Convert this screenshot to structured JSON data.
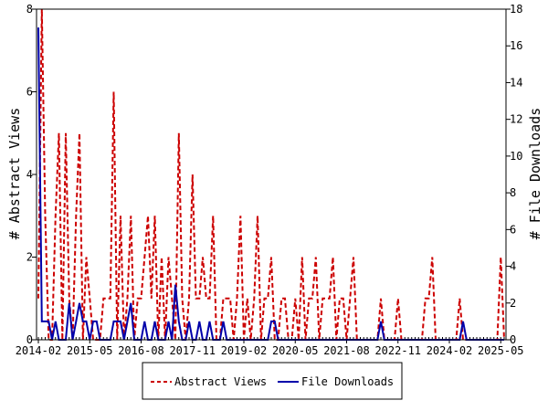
{
  "chart_data": {
    "type": "line",
    "ylabel_left": "# Abstract Views",
    "ylabel_right": "# File Downloads",
    "ylim_left": [
      0,
      8
    ],
    "ylim_right": [
      0,
      18
    ],
    "y_ticks_left": [
      0,
      2,
      4,
      6,
      8
    ],
    "y_ticks_right": [
      0,
      2,
      4,
      6,
      8,
      10,
      12,
      14,
      16,
      18
    ],
    "x_ticks": [
      "2014-02",
      "2015-05",
      "2016-08",
      "2017-11",
      "2019-02",
      "2020-05",
      "2021-08",
      "2022-11",
      "2024-02",
      "2025-05"
    ],
    "x": [
      "2014-02",
      "2014-03",
      "2014-04",
      "2014-05",
      "2014-06",
      "2014-07",
      "2014-08",
      "2014-09",
      "2014-10",
      "2014-11",
      "2014-12",
      "2015-01",
      "2015-02",
      "2015-03",
      "2015-04",
      "2015-05",
      "2015-06",
      "2015-07",
      "2015-08",
      "2015-09",
      "2015-10",
      "2015-11",
      "2015-12",
      "2016-01",
      "2016-02",
      "2016-03",
      "2016-04",
      "2016-05",
      "2016-06",
      "2016-07",
      "2016-08",
      "2016-09",
      "2016-10",
      "2016-11",
      "2016-12",
      "2017-01",
      "2017-02",
      "2017-03",
      "2017-04",
      "2017-05",
      "2017-06",
      "2017-07",
      "2017-08",
      "2017-09",
      "2017-10",
      "2017-11",
      "2017-12",
      "2018-01",
      "2018-02",
      "2018-03",
      "2018-04",
      "2018-05",
      "2018-06",
      "2018-07",
      "2018-08",
      "2018-09",
      "2018-10",
      "2018-11",
      "2018-12",
      "2019-01",
      "2019-02",
      "2019-03",
      "2019-04",
      "2019-05",
      "2019-06",
      "2019-07",
      "2019-08",
      "2019-09",
      "2019-10",
      "2019-11",
      "2019-12",
      "2020-01",
      "2020-02",
      "2020-03",
      "2020-04",
      "2020-05",
      "2020-06",
      "2020-07",
      "2020-08",
      "2020-09",
      "2020-10",
      "2020-11",
      "2020-12",
      "2021-01",
      "2021-02",
      "2021-03",
      "2021-04",
      "2021-05",
      "2021-06",
      "2021-07",
      "2021-08",
      "2021-09",
      "2021-10",
      "2021-11",
      "2021-12",
      "2022-01",
      "2022-02",
      "2022-03",
      "2022-04",
      "2022-05",
      "2022-06",
      "2022-07",
      "2022-08",
      "2022-09",
      "2022-10",
      "2022-11",
      "2022-12",
      "2023-01",
      "2023-02",
      "2023-03",
      "2023-04",
      "2023-05",
      "2023-06",
      "2023-07",
      "2023-08",
      "2023-09",
      "2023-10",
      "2023-11",
      "2023-12",
      "2024-01",
      "2024-02",
      "2024-03",
      "2024-04",
      "2024-05",
      "2024-06",
      "2024-07",
      "2024-08",
      "2024-09",
      "2024-10",
      "2024-11",
      "2024-12",
      "2025-01",
      "2025-02",
      "2025-03",
      "2025-04",
      "2025-05",
      "2025-06"
    ],
    "series": [
      {
        "name": "Abstract Views",
        "axis": "left",
        "color": "#cc0000",
        "style": "dashed",
        "values": [
          1,
          8,
          3,
          0,
          0,
          3,
          5,
          0,
          5,
          1,
          0,
          3,
          5,
          0,
          2,
          1,
          0,
          0,
          0,
          1,
          1,
          1,
          6,
          0,
          3,
          0,
          1,
          3,
          0,
          1,
          1,
          2,
          3,
          1,
          3,
          0,
          2,
          0,
          2,
          1,
          0,
          5,
          1,
          0,
          1,
          4,
          1,
          1,
          2,
          1,
          1,
          3,
          0,
          0,
          1,
          1,
          1,
          0,
          1,
          3,
          0,
          1,
          0,
          1,
          3,
          0,
          1,
          1,
          2,
          0,
          0,
          1,
          1,
          0,
          0,
          1,
          0,
          2,
          0,
          1,
          1,
          2,
          0,
          1,
          1,
          1,
          2,
          0,
          1,
          1,
          0,
          1,
          2,
          0,
          0,
          0,
          0,
          0,
          0,
          0,
          1,
          0,
          0,
          0,
          0,
          1,
          0,
          0,
          0,
          0,
          0,
          0,
          0,
          1,
          1,
          2,
          0,
          0,
          0,
          0,
          0,
          0,
          0,
          1,
          0,
          0,
          0,
          0,
          0,
          0,
          0,
          0,
          0,
          0,
          0,
          2,
          0
        ]
      },
      {
        "name": "File Downloads",
        "axis": "right",
        "color": "#0000aa",
        "style": "solid",
        "values": [
          17,
          1,
          1,
          1,
          0,
          1,
          0,
          0,
          0,
          2,
          0,
          1,
          2,
          1,
          1,
          0,
          1,
          1,
          0,
          0,
          0,
          0,
          1,
          1,
          1,
          0,
          1,
          2,
          0,
          0,
          0,
          1,
          0,
          0,
          1,
          0,
          0,
          0,
          1,
          0,
          3,
          1,
          0,
          0,
          1,
          0,
          0,
          1,
          0,
          0,
          1,
          0,
          0,
          0,
          1,
          0,
          0,
          0,
          0,
          0,
          0,
          0,
          0,
          0,
          0,
          0,
          0,
          0,
          1,
          1,
          0,
          0,
          0,
          0,
          0,
          0,
          0,
          0,
          0,
          0,
          0,
          0,
          0,
          0,
          0,
          0,
          0,
          0,
          0,
          0,
          0,
          0,
          0,
          0,
          0,
          0,
          0,
          0,
          0,
          0,
          1,
          0,
          0,
          0,
          0,
          0,
          0,
          0,
          0,
          0,
          0,
          0,
          0,
          0,
          0,
          0,
          0,
          0,
          0,
          0,
          0,
          0,
          0,
          0,
          1,
          0,
          0,
          0,
          0,
          0,
          0,
          0,
          0,
          0,
          0,
          0,
          0
        ]
      }
    ],
    "legend_position": "bottom",
    "grid": false
  }
}
